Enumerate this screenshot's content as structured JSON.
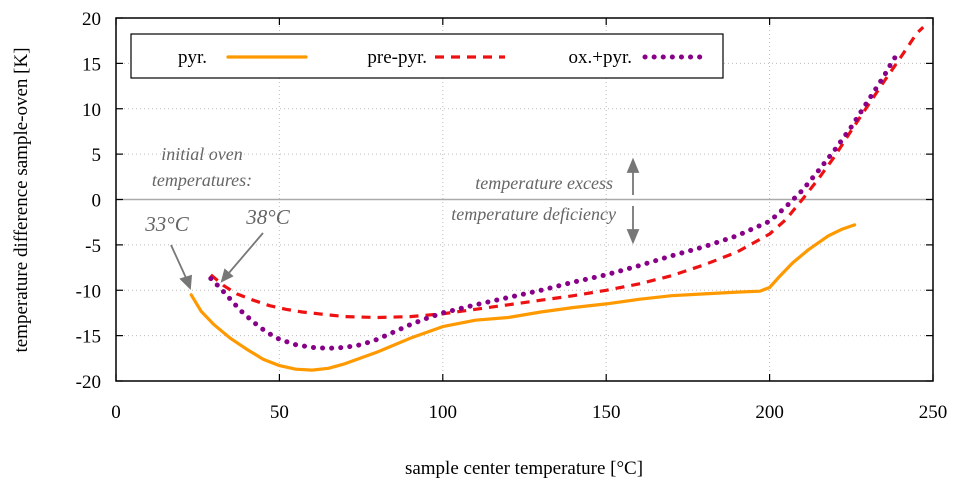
{
  "chart_data": {
    "type": "line",
    "xlabel": "sample center temperature [°C]",
    "ylabel": "temperature difference sample-oven [K]",
    "xlim": [
      0,
      250
    ],
    "ylim": [
      -20,
      20
    ],
    "x_ticks": [
      0,
      50,
      100,
      150,
      200,
      250
    ],
    "y_ticks": [
      -20,
      -15,
      -10,
      -5,
      0,
      5,
      10,
      15,
      20
    ],
    "grid": true,
    "legend_position": "top",
    "series": [
      {
        "name": "pyr.",
        "color": "#ff9900",
        "style": "solid",
        "x": [
          23,
          26,
          30,
          35,
          40,
          45,
          50,
          55,
          60,
          65,
          70,
          80,
          90,
          100,
          110,
          120,
          130,
          140,
          150,
          160,
          170,
          180,
          190,
          197,
          200,
          203,
          207,
          212,
          218,
          222,
          226
        ],
        "y": [
          -10.5,
          -12.3,
          -13.8,
          -15.3,
          -16.5,
          -17.6,
          -18.3,
          -18.7,
          -18.8,
          -18.6,
          -18.1,
          -16.8,
          -15.3,
          -14.0,
          -13.3,
          -13.0,
          -12.4,
          -11.9,
          -11.5,
          -11.0,
          -10.6,
          -10.4,
          -10.2,
          -10.1,
          -9.7,
          -8.5,
          -7.0,
          -5.5,
          -4.0,
          -3.3,
          -2.8
        ]
      },
      {
        "name": "pre-pyr.",
        "color": "#ee1111",
        "style": "dashed",
        "x": [
          29,
          33,
          37,
          42,
          47,
          52,
          57,
          62,
          70,
          80,
          90,
          100,
          110,
          120,
          130,
          140,
          150,
          160,
          170,
          180,
          190,
          200,
          205,
          210,
          215,
          220,
          225,
          230,
          235,
          240,
          245,
          247
        ],
        "y": [
          -8.3,
          -9.5,
          -10.4,
          -11.1,
          -11.7,
          -12.1,
          -12.4,
          -12.6,
          -12.9,
          -13.0,
          -12.9,
          -12.6,
          -12.1,
          -11.6,
          -11.1,
          -10.6,
          -10.0,
          -9.3,
          -8.4,
          -7.2,
          -5.8,
          -3.8,
          -2.2,
          0.0,
          2.3,
          4.8,
          7.6,
          10.3,
          13.0,
          15.6,
          18.3,
          19.0
        ]
      },
      {
        "name": "ox.+pyr.",
        "color": "#880088",
        "style": "dotted",
        "x": [
          29,
          32,
          35,
          38,
          42,
          46,
          50,
          55,
          60,
          65,
          70,
          75,
          80,
          85,
          90,
          95,
          100,
          110,
          120,
          130,
          140,
          150,
          160,
          170,
          180,
          190,
          200,
          205,
          210,
          215,
          220,
          225,
          230,
          235,
          238,
          240
        ],
        "y": [
          -8.7,
          -9.8,
          -11.0,
          -12.2,
          -13.5,
          -14.6,
          -15.4,
          -16.0,
          -16.3,
          -16.4,
          -16.3,
          -16.0,
          -15.4,
          -14.6,
          -13.8,
          -13.1,
          -12.5,
          -11.6,
          -10.8,
          -10.0,
          -9.1,
          -8.3,
          -7.3,
          -6.2,
          -5.2,
          -4.0,
          -2.4,
          -0.8,
          1.0,
          3.2,
          5.5,
          8.0,
          10.8,
          13.6,
          15.5,
          16.2
        ]
      }
    ],
    "annotations": [
      {
        "text": "initial oven",
        "style": "italic"
      },
      {
        "text": "temperatures:",
        "style": "italic"
      },
      {
        "text": "33°C",
        "x": 23,
        "y": -10.5
      },
      {
        "text": "38°C",
        "x": 30,
        "y": -8.7
      },
      {
        "text": "temperature excess"
      },
      {
        "text": "temperature deficiency"
      }
    ]
  }
}
